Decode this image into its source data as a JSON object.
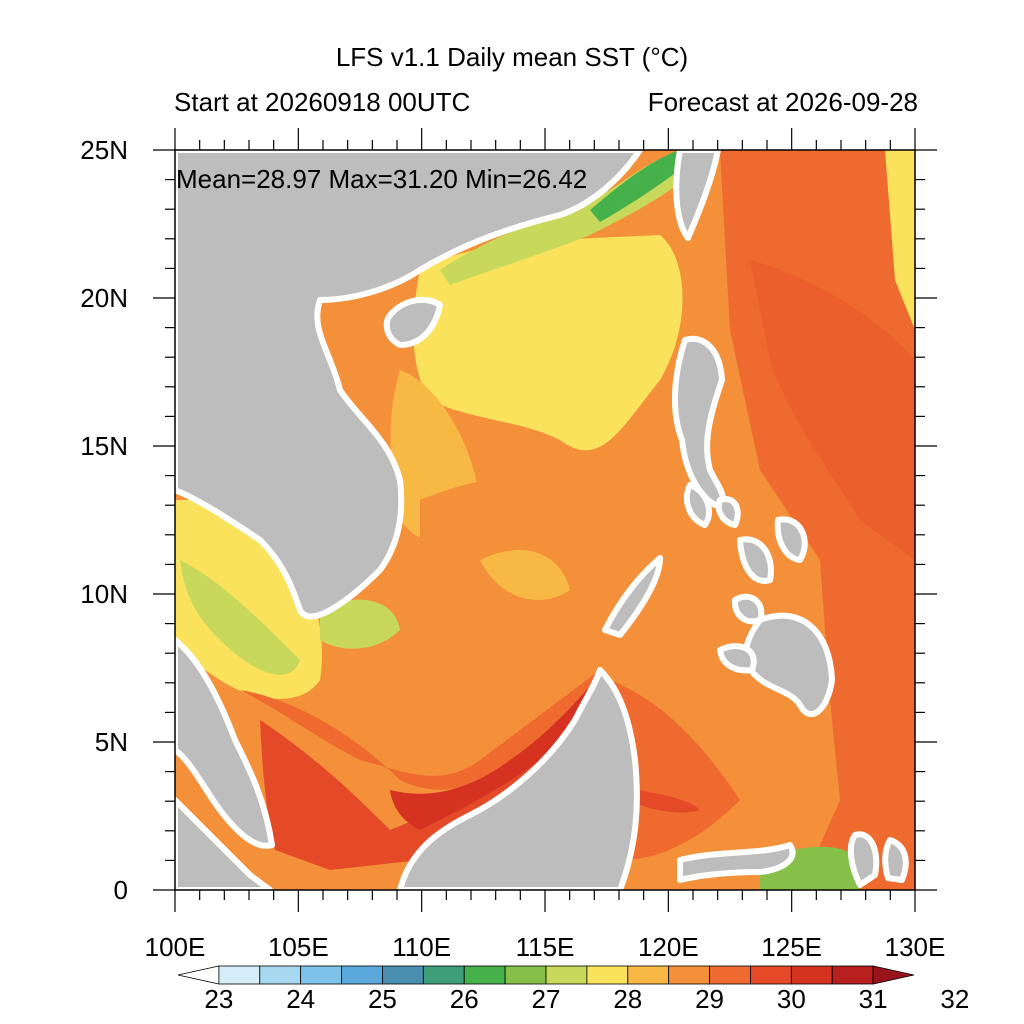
{
  "title": "LFS v1.1 Daily mean SST (°C)",
  "start_label": "Start at 20260918 00UTC",
  "forecast_label": "Forecast at 2026-09-28",
  "stats": {
    "mean": "28.97",
    "max": "31.20",
    "min": "26.42",
    "text": "Mean=28.97  Max=31.20  Min=26.42"
  },
  "map": {
    "lon_range": [
      100,
      130
    ],
    "lat_range": [
      0,
      25
    ],
    "lon_ticks": [
      "100E",
      "105E",
      "110E",
      "115E",
      "120E",
      "125E",
      "130E"
    ],
    "lat_ticks": [
      "0",
      "5N",
      "10N",
      "15N",
      "20N",
      "25N"
    ],
    "land_color": "#bdbdbd"
  },
  "colorbar": {
    "labels": [
      "23",
      "24",
      "25",
      "26",
      "27",
      "28",
      "29",
      "30",
      "31",
      "32"
    ],
    "colors": [
      "#ffffff",
      "#d6ecf8",
      "#a8d8f0",
      "#7ec4ea",
      "#5aa8dc",
      "#4a8fb0",
      "#3f9e7a",
      "#46b04a",
      "#86c048",
      "#c7d85a",
      "#fbe25c",
      "#f8b844",
      "#f4903a",
      "#ee6a2e",
      "#e44a28",
      "#d63222",
      "#b82020",
      "#98141a"
    ]
  }
}
